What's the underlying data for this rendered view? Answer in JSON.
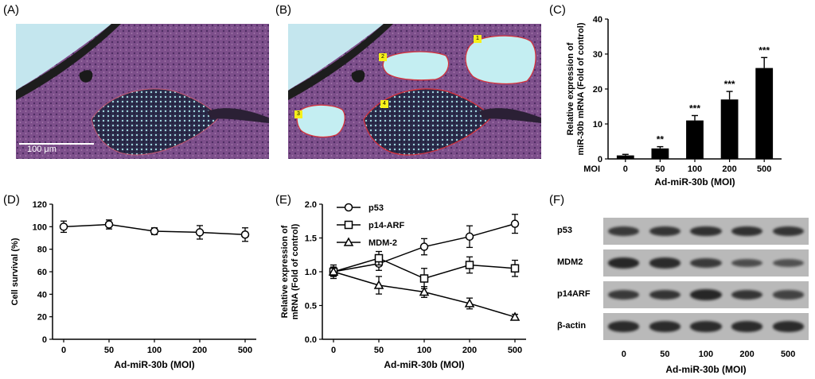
{
  "panels": {
    "A": {
      "label": "(A)",
      "scale_bar": "100 μm"
    },
    "B": {
      "label": "(B)",
      "regions": [
        "1",
        "2",
        "3",
        "4"
      ]
    },
    "C": {
      "label": "(C)"
    },
    "D": {
      "label": "(D)"
    },
    "E": {
      "label": "(E)"
    },
    "F": {
      "label": "(F)"
    }
  },
  "colors": {
    "tissue": "#7a4f8a",
    "lumen": "#b8e6ec",
    "outline": "#d8323a",
    "tag": "#f6f01a"
  },
  "chart_data": [
    {
      "panel": "C",
      "type": "bar",
      "categories": [
        "0",
        "50",
        "100",
        "200",
        "500"
      ],
      "values": [
        1.0,
        3.0,
        11.0,
        17.0,
        26.0
      ],
      "errors": [
        0.3,
        0.5,
        1.4,
        2.3,
        3.0
      ],
      "significance": [
        "",
        "**",
        "***",
        "***",
        "***"
      ],
      "xlabel": "Ad-miR-30b (MOI)",
      "xtick_title": "MOI",
      "ylabel": "Relative expression of miR-30b mRNA (Fold of control)",
      "ylim": [
        0,
        40
      ],
      "yticks": [
        "0",
        "10",
        "20",
        "30",
        "40"
      ]
    },
    {
      "panel": "D",
      "type": "line",
      "x": [
        "0",
        "50",
        "100",
        "200",
        "500"
      ],
      "series": [
        {
          "values": [
            100,
            102,
            96,
            95,
            93
          ],
          "errors": [
            5,
            4,
            3,
            6,
            6
          ],
          "marker": "circle"
        }
      ],
      "xlabel": "Ad-miR-30b (MOI)",
      "ylabel": "Cell survival (%)",
      "ylim": [
        0,
        120
      ],
      "yticks": [
        "0",
        "20",
        "40",
        "60",
        "80",
        "100",
        "120"
      ]
    },
    {
      "panel": "E",
      "type": "line",
      "x": [
        "0",
        "50",
        "100",
        "200",
        "500"
      ],
      "series": [
        {
          "name": "p53",
          "values": [
            1.0,
            1.12,
            1.37,
            1.52,
            1.71
          ],
          "errors": [
            0.07,
            0.1,
            0.12,
            0.16,
            0.14
          ],
          "marker": "circle"
        },
        {
          "name": "p14-ARF",
          "values": [
            1.0,
            1.2,
            0.9,
            1.1,
            1.05
          ],
          "errors": [
            0.06,
            0.1,
            0.15,
            0.12,
            0.12
          ],
          "marker": "square"
        },
        {
          "name": "MDM-2",
          "values": [
            1.0,
            0.8,
            0.7,
            0.53,
            0.33
          ],
          "errors": [
            0.1,
            0.13,
            0.08,
            0.08,
            0.04
          ],
          "marker": "triangle"
        }
      ],
      "xlabel": "Ad-miR-30b (MOI)",
      "ylabel": "Relative expression of mRNA (Fold of control)",
      "ylim": [
        0,
        2.0
      ],
      "yticks": [
        "0.0",
        "0.5",
        "1.0",
        "1.5",
        "2.0"
      ],
      "legend": "top-left"
    }
  ],
  "blot": {
    "rows": [
      {
        "name": "p53",
        "intensity": [
          0.75,
          0.8,
          0.85,
          0.85,
          0.8
        ]
      },
      {
        "name": "MDM2",
        "intensity": [
          0.95,
          0.9,
          0.75,
          0.55,
          0.5
        ]
      },
      {
        "name": "p14ARF",
        "intensity": [
          0.75,
          0.8,
          0.95,
          0.8,
          0.65
        ]
      },
      {
        "name": "β-actin",
        "intensity": [
          0.9,
          0.9,
          0.9,
          0.9,
          0.9
        ]
      }
    ],
    "lanes": [
      "0",
      "50",
      "100",
      "200",
      "500"
    ],
    "xlabel": "Ad-miR-30b (MOI)"
  }
}
